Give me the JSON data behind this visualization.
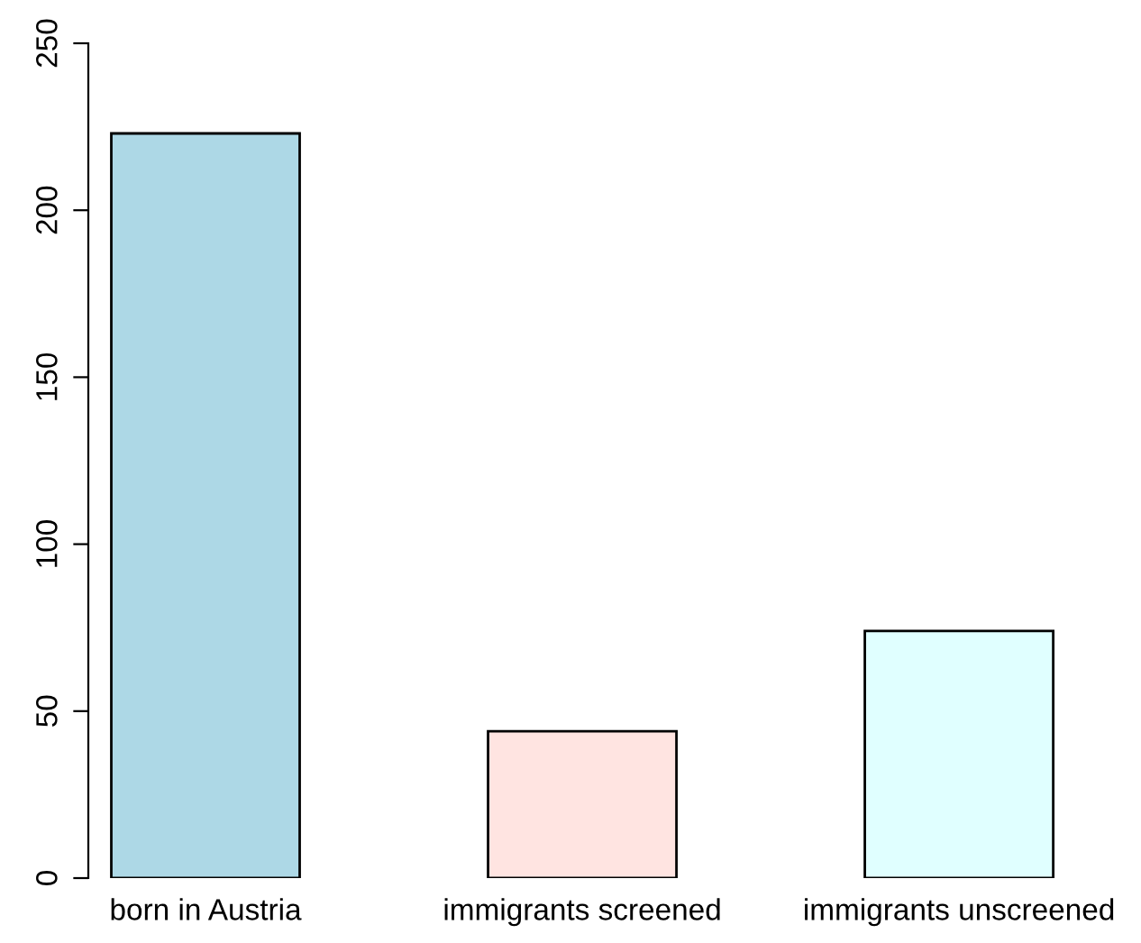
{
  "chart_data": {
    "type": "bar",
    "categories": [
      "born in Austria",
      "immigrants screened",
      "immigrants unscreened"
    ],
    "values": [
      223,
      44,
      74
    ],
    "colors": [
      "#add8e6",
      "#ffe4e1",
      "#e0ffff"
    ],
    "ylim": [
      0,
      250
    ],
    "yticks": [
      0,
      50,
      100,
      150,
      200,
      250
    ],
    "grid": false,
    "legend": false
  }
}
